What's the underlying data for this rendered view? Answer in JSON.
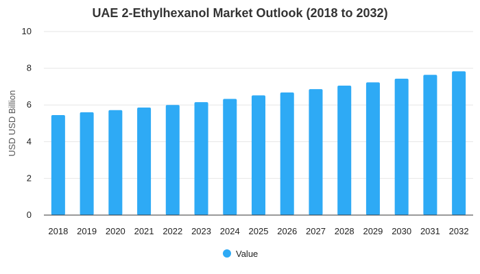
{
  "chart_data": {
    "type": "bar",
    "title": "UAE 2-Ethylhexanol Market Outlook (2018 to 2032)",
    "xlabel": "",
    "ylabel": "USD USD Billion",
    "ylim": [
      0,
      10
    ],
    "yticks": [
      0,
      2,
      4,
      6,
      8,
      10
    ],
    "categories": [
      "2018",
      "2019",
      "2020",
      "2021",
      "2022",
      "2023",
      "2024",
      "2025",
      "2026",
      "2027",
      "2028",
      "2029",
      "2030",
      "2031",
      "2032"
    ],
    "series": [
      {
        "name": "Value",
        "color": "#2eaaf5",
        "values": [
          5.45,
          5.6,
          5.72,
          5.86,
          6.0,
          6.15,
          6.33,
          6.52,
          6.68,
          6.86,
          7.05,
          7.23,
          7.43,
          7.64,
          7.83
        ]
      }
    ],
    "grid": true,
    "legend_position": "bottom"
  }
}
